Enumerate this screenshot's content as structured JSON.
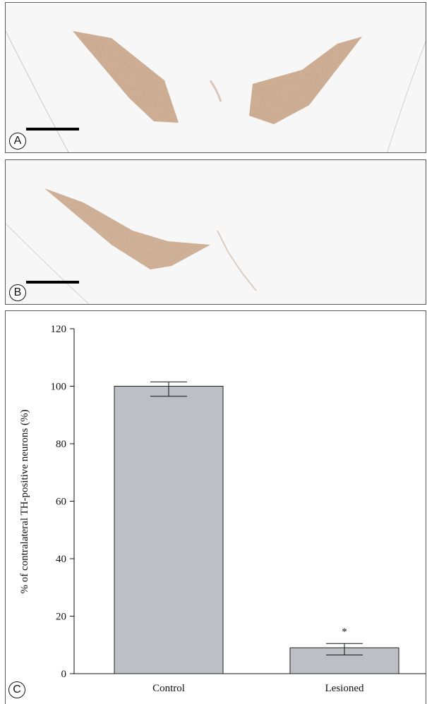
{
  "panels": {
    "a_label": "A",
    "b_label": "B",
    "c_label": "C"
  },
  "chart_data": {
    "type": "bar",
    "categories": [
      "Control",
      "Lesioned"
    ],
    "values": [
      100,
      9
    ],
    "error_low": [
      3.5,
      2.5
    ],
    "error_high": [
      1.5,
      1.5
    ],
    "significance": [
      "",
      "*"
    ],
    "title": "",
    "xlabel": "",
    "ylabel": "% of contralateral TH-positive neurons (%)",
    "ylim": [
      0,
      120
    ],
    "yticks": [
      0,
      20,
      40,
      60,
      80,
      100,
      120
    ],
    "bar_color": "#bebfc4",
    "grid": false
  }
}
